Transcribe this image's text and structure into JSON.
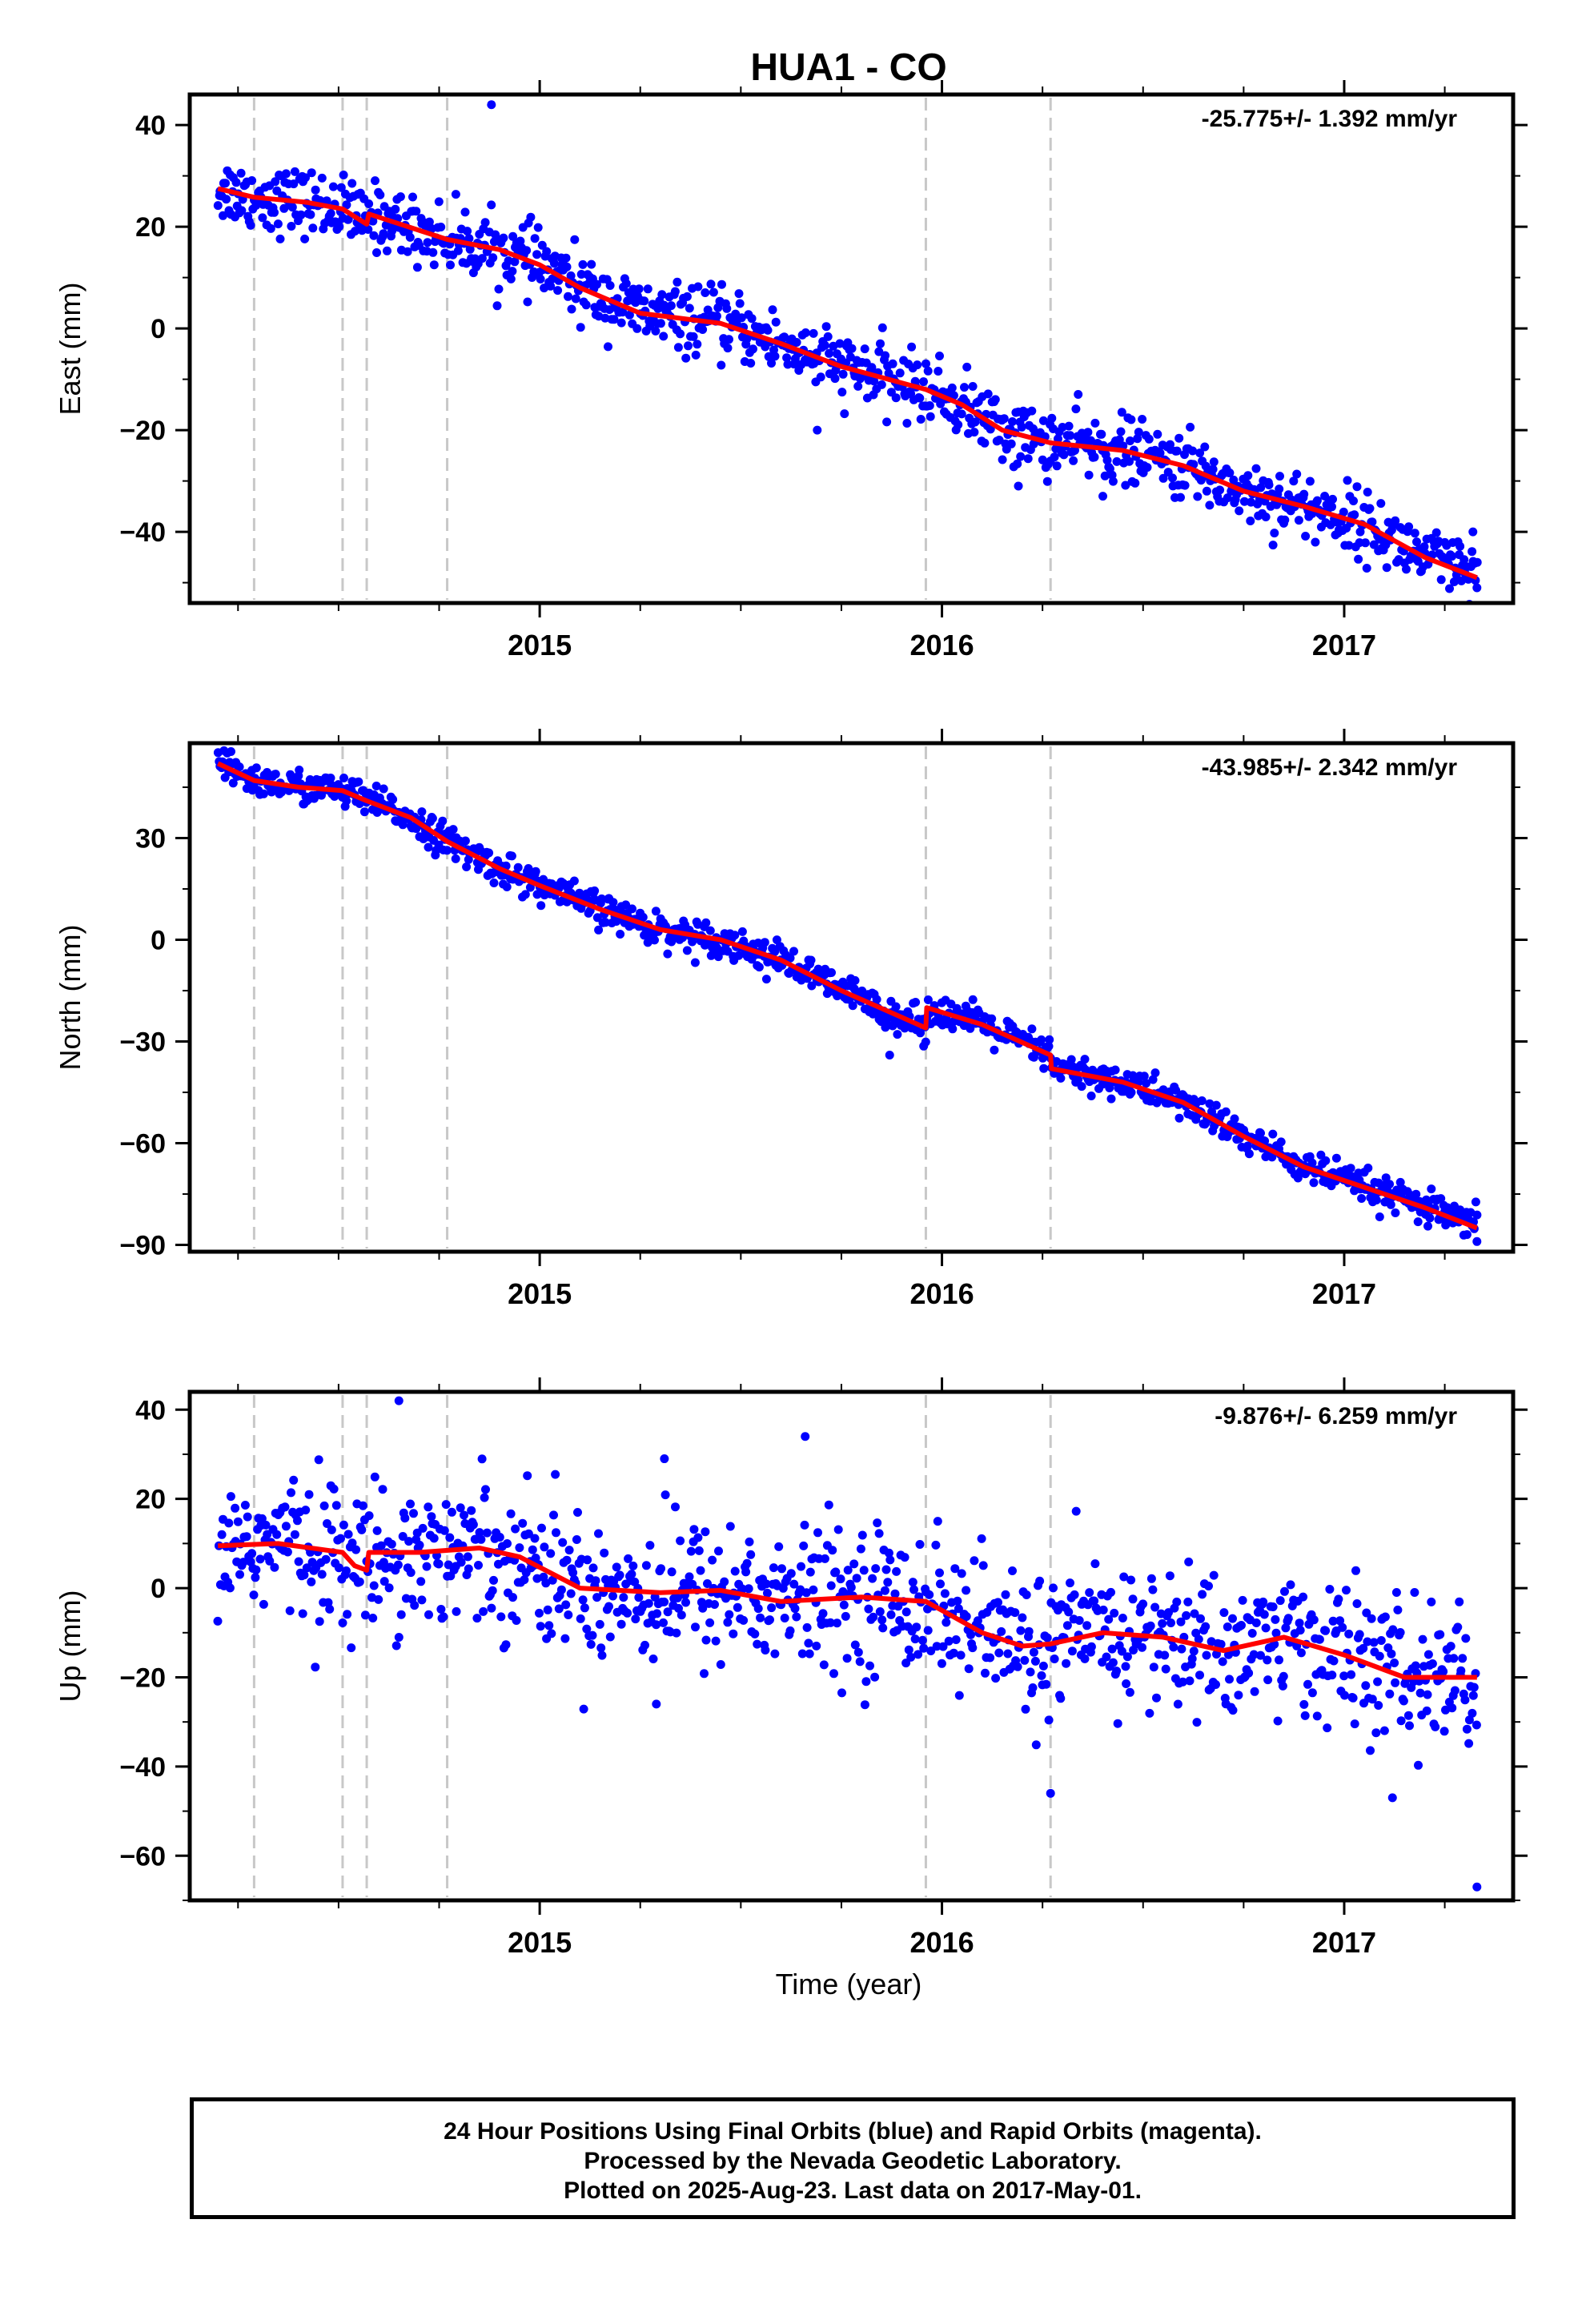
{
  "title": "HUA1 - CO",
  "xlabel": "Time (year)",
  "footer": {
    "line1": "24 Hour Positions Using Final Orbits (blue) and Rapid Orbits (magenta).",
    "line2": "Processed by the Nevada Geodetic Laboratory.",
    "line3": "Plotted on 2025-Aug-23. Last data on 2017-May-01."
  },
  "colors": {
    "points": "#0000ff",
    "model": "#ff0000",
    "breaks": "#c8c8c8"
  },
  "chart_data": [
    {
      "type": "scatter",
      "ylabel": "East (mm)",
      "rate_label": "-25.775+/- 1.392 mm/yr",
      "xlim": [
        2014.13,
        2017.42
      ],
      "ylim": [
        -54,
        46
      ],
      "yticks": [
        40,
        20,
        0,
        -20,
        -40
      ],
      "xticks": [
        2015,
        2016,
        2017
      ],
      "breaks": [
        2014.29,
        2014.51,
        2014.57,
        2014.77,
        2015.96,
        2016.27
      ],
      "model": [
        [
          2014.2,
          27.5
        ],
        [
          2014.29,
          25.8
        ],
        [
          2014.42,
          24.8
        ],
        [
          2014.51,
          23.5
        ],
        [
          2014.57,
          20.5
        ],
        [
          2014.575,
          22.5
        ],
        [
          2014.77,
          17.5
        ],
        [
          2014.9,
          15.5
        ],
        [
          2015.0,
          12.5
        ],
        [
          2015.1,
          8
        ],
        [
          2015.25,
          3
        ],
        [
          2015.45,
          1
        ],
        [
          2015.6,
          -3
        ],
        [
          2015.75,
          -7.5
        ],
        [
          2015.96,
          -12
        ],
        [
          2016.05,
          -15
        ],
        [
          2016.15,
          -20
        ],
        [
          2016.27,
          -22.5
        ],
        [
          2016.45,
          -24
        ],
        [
          2016.6,
          -27
        ],
        [
          2016.75,
          -32
        ],
        [
          2016.9,
          -35
        ],
        [
          2017.05,
          -38.5
        ],
        [
          2017.2,
          -45
        ],
        [
          2017.33,
          -49
        ]
      ],
      "points_summary": {
        "count": 1050,
        "start": 2014.2,
        "end": 2017.33
      },
      "outliers": [
        [
          2014.88,
          44
        ],
        [
          2015.69,
          -20
        ],
        [
          2016.19,
          -31
        ],
        [
          2016.4,
          -33
        ],
        [
          2017.32,
          -40
        ],
        [
          2017.33,
          -51
        ]
      ],
      "spread": 3.2
    },
    {
      "type": "scatter",
      "ylabel": "North (mm)",
      "rate_label": "-43.985+/- 2.342 mm/yr",
      "xlim": [
        2014.13,
        2017.42
      ],
      "ylim": [
        -92,
        58
      ],
      "yticks": [
        30,
        0,
        -30,
        -60,
        -90
      ],
      "xticks": [
        2015,
        2016,
        2017
      ],
      "breaks": [
        2014.29,
        2014.51,
        2014.57,
        2014.77,
        2015.96,
        2016.27
      ],
      "model": [
        [
          2014.2,
          52
        ],
        [
          2014.29,
          47
        ],
        [
          2014.4,
          45
        ],
        [
          2014.51,
          44
        ],
        [
          2014.57,
          41
        ],
        [
          2014.68,
          36
        ],
        [
          2014.77,
          29
        ],
        [
          2014.9,
          21
        ],
        [
          2015.0,
          16
        ],
        [
          2015.15,
          9
        ],
        [
          2015.3,
          3
        ],
        [
          2015.45,
          0
        ],
        [
          2015.6,
          -6
        ],
        [
          2015.75,
          -15
        ],
        [
          2015.96,
          -26
        ],
        [
          2015.962,
          -20
        ],
        [
          2016.1,
          -25
        ],
        [
          2016.27,
          -34
        ],
        [
          2016.272,
          -38
        ],
        [
          2016.45,
          -42
        ],
        [
          2016.6,
          -48
        ],
        [
          2016.75,
          -58
        ],
        [
          2016.9,
          -67
        ],
        [
          2017.05,
          -73
        ],
        [
          2017.2,
          -79
        ],
        [
          2017.33,
          -85
        ]
      ],
      "points_summary": {
        "count": 1050,
        "start": 2014.2,
        "end": 2017.33
      },
      "outliers": [
        [
          2015.87,
          -34
        ],
        [
          2017.33,
          -89
        ]
      ],
      "spread": 2.4
    },
    {
      "type": "scatter",
      "ylabel": "Up (mm)",
      "rate_label": "-9.876+/- 6.259 mm/yr",
      "xlim": [
        2014.13,
        2017.42
      ],
      "ylim": [
        -70,
        44
      ],
      "yticks": [
        40,
        20,
        0,
        -20,
        -40,
        -60
      ],
      "xticks": [
        2015,
        2016,
        2017
      ],
      "breaks": [
        2014.29,
        2014.51,
        2014.57,
        2014.77,
        2015.96,
        2016.27
      ],
      "model": [
        [
          2014.2,
          9.5
        ],
        [
          2014.35,
          10
        ],
        [
          2014.51,
          8
        ],
        [
          2014.54,
          5
        ],
        [
          2014.57,
          4
        ],
        [
          2014.575,
          8
        ],
        [
          2014.7,
          8
        ],
        [
          2014.85,
          9
        ],
        [
          2014.95,
          7
        ],
        [
          2015.1,
          0
        ],
        [
          2015.3,
          -1
        ],
        [
          2015.45,
          -0.5
        ],
        [
          2015.6,
          -3
        ],
        [
          2015.8,
          -2
        ],
        [
          2015.96,
          -3
        ],
        [
          2016.1,
          -10
        ],
        [
          2016.2,
          -13
        ],
        [
          2016.27,
          -12.5
        ],
        [
          2016.4,
          -10
        ],
        [
          2016.55,
          -11
        ],
        [
          2016.7,
          -14
        ],
        [
          2016.85,
          -11
        ],
        [
          2017.0,
          -15
        ],
        [
          2017.15,
          -20
        ],
        [
          2017.33,
          -20
        ]
      ],
      "points_summary": {
        "count": 1050,
        "start": 2014.2,
        "end": 2017.33
      },
      "outliers": [
        [
          2014.65,
          42
        ],
        [
          2015.31,
          29
        ],
        [
          2015.66,
          34
        ],
        [
          2016.27,
          -46
        ],
        [
          2017.12,
          -47
        ],
        [
          2017.33,
          -67
        ],
        [
          2015.29,
          -26
        ]
      ],
      "spread": 8
    }
  ]
}
